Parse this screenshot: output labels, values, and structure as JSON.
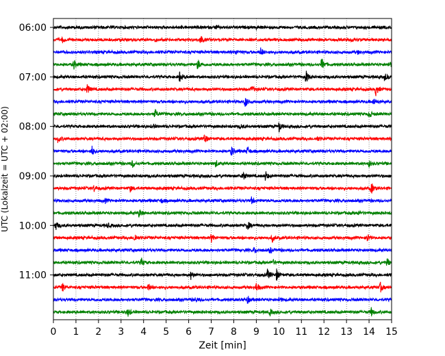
{
  "chart_data": {
    "type": "line",
    "subtype": "seismogram-helicorder",
    "xlabel": "Zeit  [min]",
    "ylabel": "UTC (Lokalzeit = UTC + 02:00)",
    "xlim": [
      0,
      15
    ],
    "x_ticks": [
      "0",
      "1",
      "2",
      "3",
      "4",
      "5",
      "6",
      "7",
      "8",
      "9",
      "10",
      "11",
      "12",
      "13",
      "14",
      "15"
    ],
    "y_tick_labels": [
      "06:00",
      "07:00",
      "08:00",
      "09:00",
      "10:00",
      "11:00"
    ],
    "grid": "vertical dotted at each minute",
    "color_cycle": [
      "#000000",
      "#ff0000",
      "#0000ff",
      "#008000"
    ],
    "traces": [
      {
        "label": "06:00",
        "events": [
          [
            7.2,
            0.2
          ],
          [
            9.0,
            0.15
          ]
        ]
      },
      {
        "label": "06:15",
        "events": [
          [
            0.4,
            0.35
          ],
          [
            6.5,
            0.9
          ],
          [
            4.5,
            0.2
          ],
          [
            13.2,
            0.2
          ]
        ]
      },
      {
        "label": "06:30",
        "events": [
          [
            8.1,
            0.3
          ],
          [
            9.2,
            0.6
          ],
          [
            13.5,
            0.2
          ]
        ]
      },
      {
        "label": "06:45",
        "events": [
          [
            0.9,
            0.7
          ],
          [
            6.4,
            0.75
          ],
          [
            11.9,
            0.95
          ],
          [
            14.9,
            0.4
          ]
        ]
      },
      {
        "label": "07:00",
        "events": [
          [
            5.6,
            0.75
          ],
          [
            11.2,
            0.95
          ],
          [
            14.7,
            0.5
          ]
        ]
      },
      {
        "label": "07:15",
        "events": [
          [
            1.5,
            0.7
          ],
          [
            8.8,
            0.4
          ],
          [
            14.3,
            0.9
          ]
        ]
      },
      {
        "label": "07:30",
        "events": [
          [
            8.5,
            0.8
          ],
          [
            14.2,
            0.5
          ]
        ]
      },
      {
        "label": "07:45",
        "events": [
          [
            4.5,
            0.65
          ],
          [
            14.0,
            0.55
          ]
        ]
      },
      {
        "label": "08:00",
        "events": [
          [
            4.4,
            0.3
          ],
          [
            8.3,
            0.3
          ],
          [
            10.0,
            0.85
          ]
        ]
      },
      {
        "label": "08:15",
        "events": [
          [
            0.2,
            0.5
          ],
          [
            6.7,
            0.75
          ],
          [
            11.7,
            0.3
          ]
        ]
      },
      {
        "label": "08:30",
        "events": [
          [
            1.7,
            0.75
          ],
          [
            7.9,
            0.7
          ],
          [
            8.6,
            0.65
          ]
        ]
      },
      {
        "label": "08:45",
        "events": [
          [
            3.5,
            0.6
          ],
          [
            7.2,
            0.5
          ],
          [
            14.0,
            0.4
          ]
        ]
      },
      {
        "label": "09:00",
        "events": [
          [
            8.4,
            0.75
          ],
          [
            9.4,
            0.7
          ]
        ]
      },
      {
        "label": "09:15",
        "events": [
          [
            1.8,
            0.45
          ],
          [
            3.4,
            0.4
          ],
          [
            14.1,
            0.85
          ]
        ]
      },
      {
        "label": "09:30",
        "events": [
          [
            2.3,
            0.25
          ],
          [
            4.8,
            0.3
          ],
          [
            8.8,
            0.55
          ]
        ]
      },
      {
        "label": "09:45",
        "events": [
          [
            3.8,
            0.6
          ],
          [
            13.5,
            0.3
          ]
        ]
      },
      {
        "label": "10:00",
        "events": [
          [
            0.1,
            0.6
          ],
          [
            2.4,
            0.3
          ],
          [
            8.6,
            0.7
          ]
        ]
      },
      {
        "label": "10:15",
        "events": [
          [
            3.6,
            0.65
          ],
          [
            7.0,
            0.6
          ],
          [
            9.7,
            0.55
          ],
          [
            13.9,
            0.65
          ]
        ]
      },
      {
        "label": "10:30",
        "events": [
          [
            8.9,
            0.4
          ],
          [
            9.6,
            0.4
          ]
        ]
      },
      {
        "label": "10:45",
        "events": [
          [
            3.9,
            0.6
          ],
          [
            9.7,
            0.5
          ],
          [
            14.8,
            0.6
          ]
        ]
      },
      {
        "label": "11:00",
        "events": [
          [
            6.1,
            0.55
          ],
          [
            9.5,
            0.8
          ],
          [
            9.9,
            0.85
          ]
        ]
      },
      {
        "label": "11:15",
        "events": [
          [
            0.4,
            0.6
          ],
          [
            4.2,
            0.55
          ],
          [
            9.0,
            0.65
          ],
          [
            14.5,
            0.7
          ]
        ]
      },
      {
        "label": "11:30",
        "events": [
          [
            6.3,
            0.3
          ],
          [
            8.6,
            0.55
          ],
          [
            10.0,
            0.35
          ]
        ]
      },
      {
        "label": "11:45",
        "events": [
          [
            3.3,
            0.6
          ],
          [
            9.6,
            0.45
          ],
          [
            14.1,
            0.55
          ]
        ]
      }
    ]
  }
}
